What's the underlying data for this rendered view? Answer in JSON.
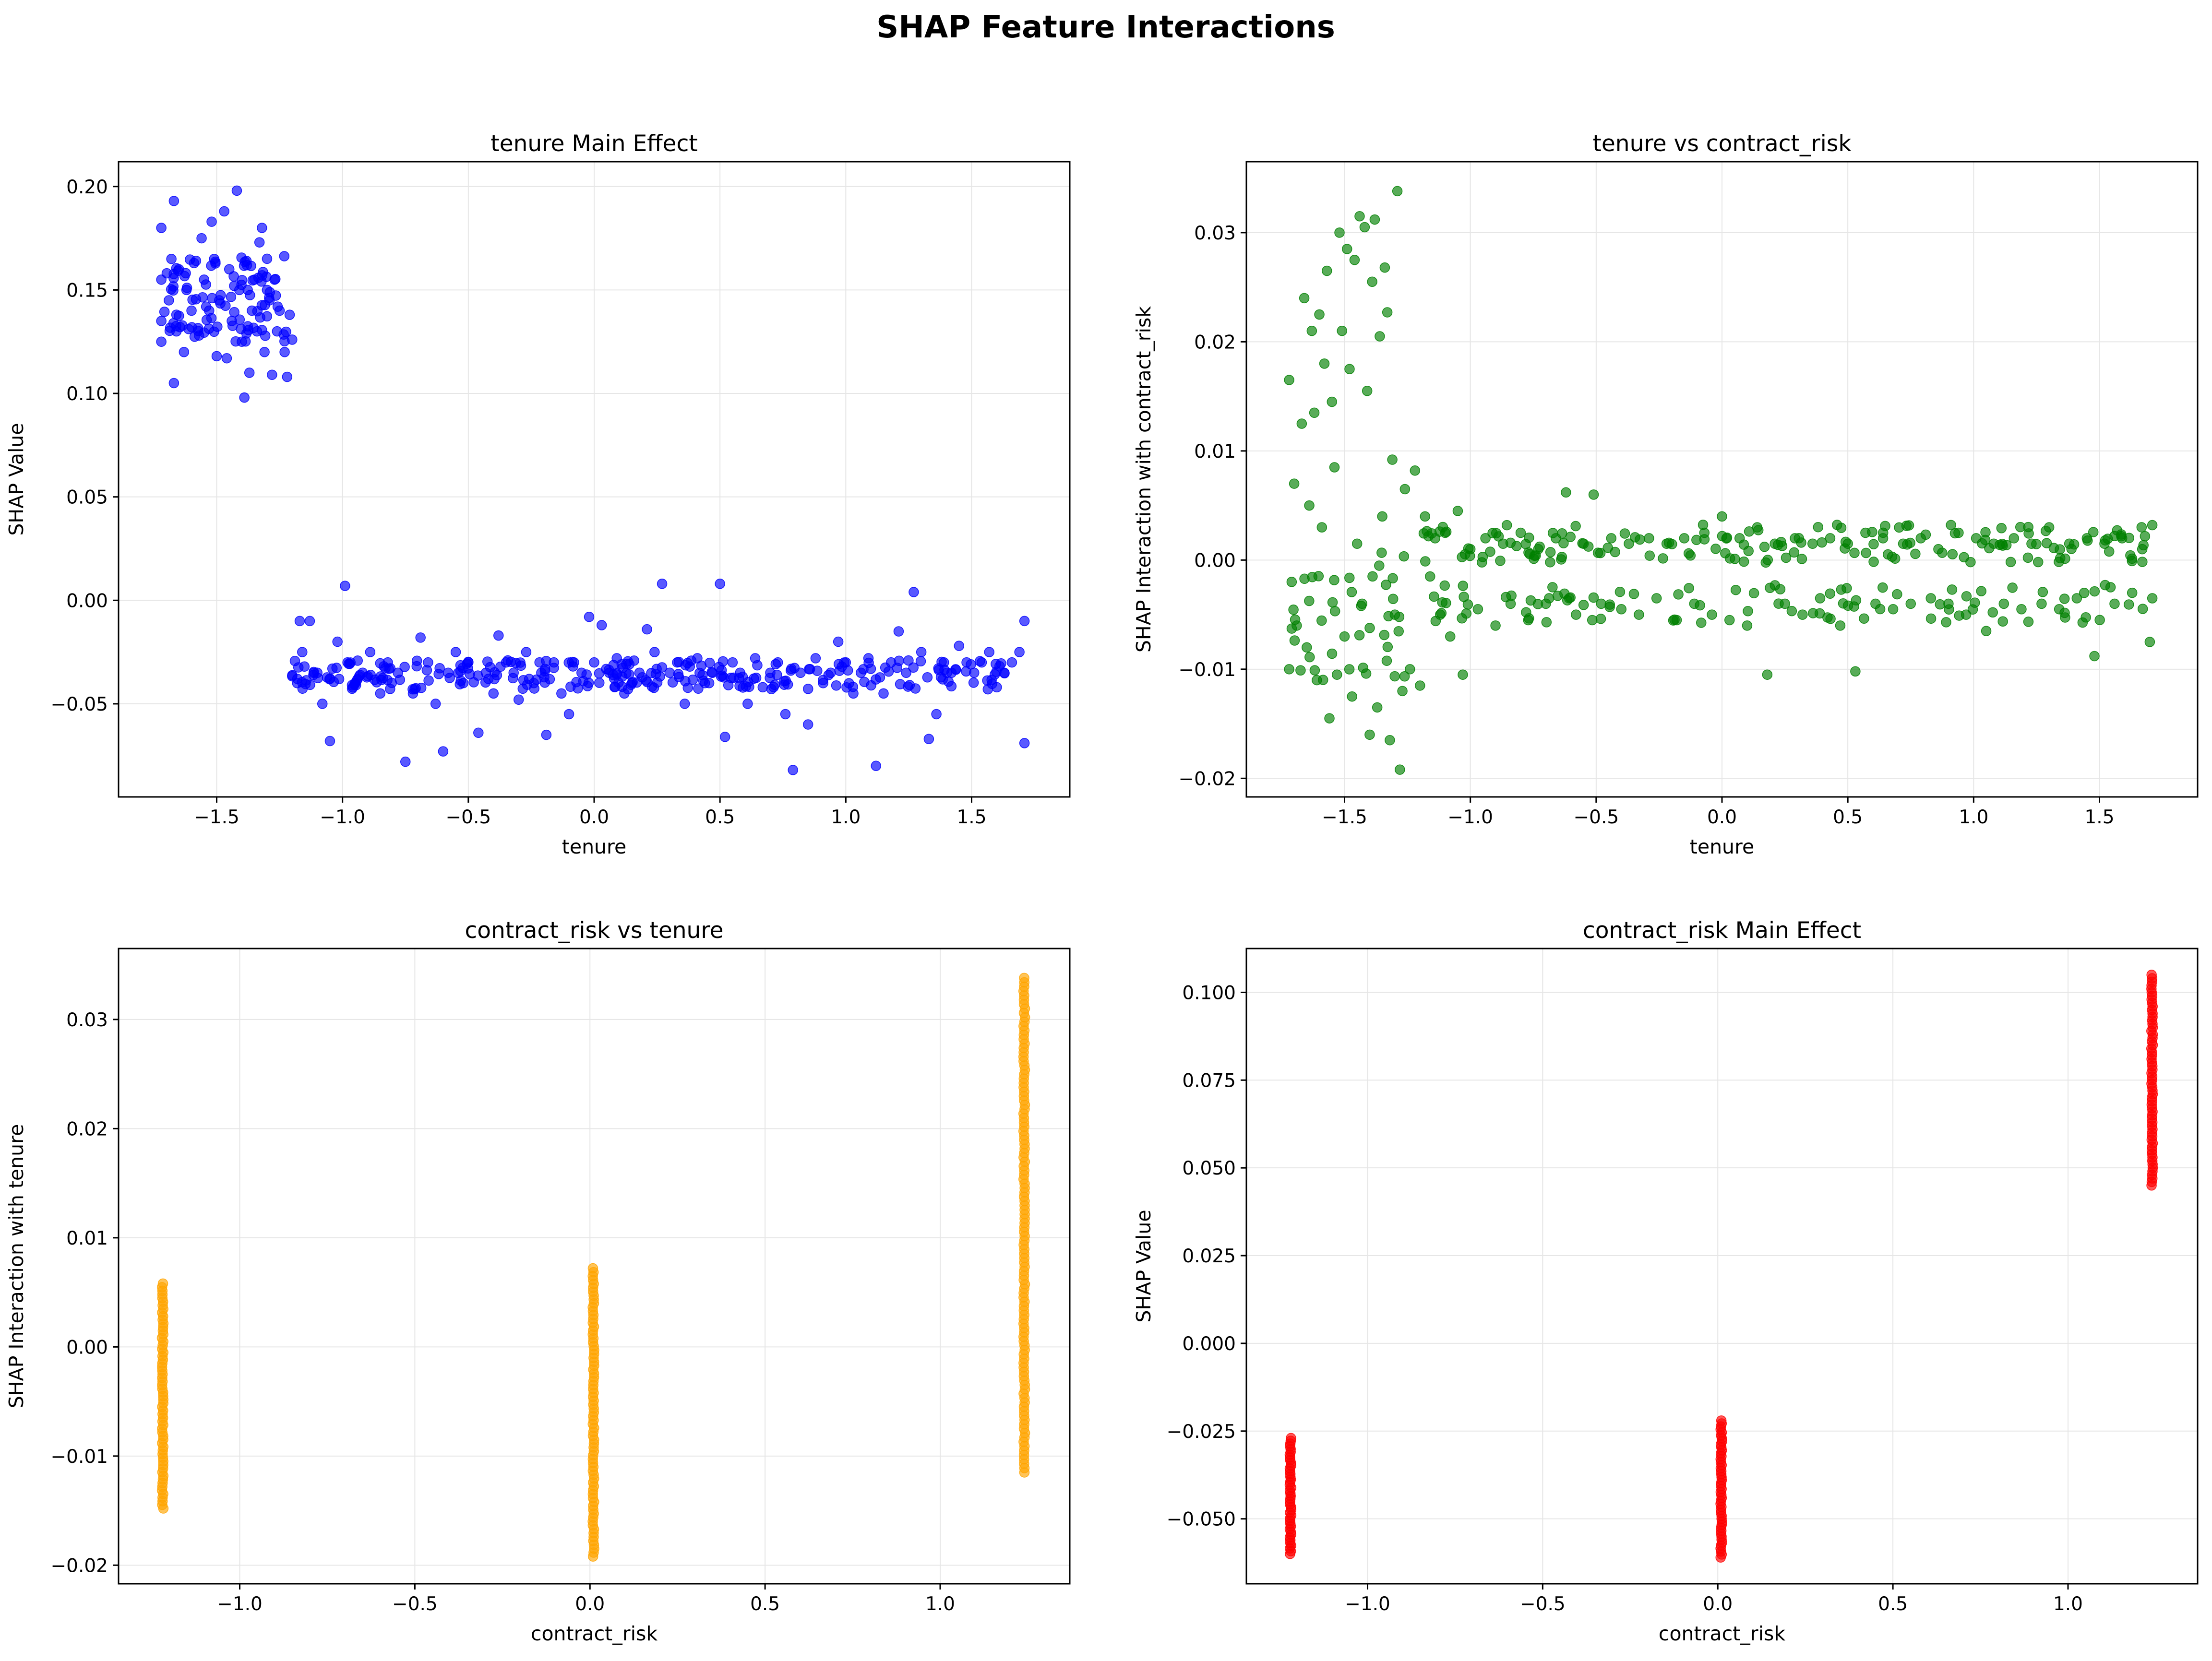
{
  "suptitle": "SHAP Feature Interactions",
  "colors": {
    "blue": "#0000ff",
    "green": "#008000",
    "orange": "#ffa500",
    "red": "#ff0000",
    "grid": "#e6e6e6"
  },
  "chart_data": [
    {
      "type": "scatter",
      "title": "tenure Main Effect",
      "xlabel": "tenure",
      "ylabel": "SHAP Value",
      "color": "#0000ff",
      "xlim": [
        -1.89,
        1.89
      ],
      "ylim": [
        -0.095,
        0.212
      ],
      "xticks": [
        -1.5,
        -1.0,
        -0.5,
        0.0,
        0.5,
        1.0,
        1.5
      ],
      "yticks": [
        -0.05,
        0.0,
        0.05,
        0.1,
        0.15,
        0.2
      ],
      "xtick_labels": [
        "−1.5",
        "−1.0",
        "−0.5",
        "0.0",
        "0.5",
        "1.0",
        "1.5"
      ],
      "ytick_labels": [
        "−0.05",
        "0.00",
        "0.05",
        "0.10",
        "0.15",
        "0.20"
      ],
      "grid": true,
      "points": [
        [
          -1.72,
          0.155
        ],
        [
          -1.72,
          0.135
        ],
        [
          -1.72,
          0.18
        ],
        [
          -1.72,
          0.125
        ],
        [
          -1.69,
          0.145
        ],
        [
          -1.68,
          0.165
        ],
        [
          -1.67,
          0.193
        ],
        [
          -1.67,
          0.105
        ],
        [
          -1.66,
          0.13
        ],
        [
          -1.65,
          0.16
        ],
        [
          -1.63,
          0.12
        ],
        [
          -1.62,
          0.15
        ],
        [
          -1.6,
          0.14
        ],
        [
          -1.59,
          0.163
        ],
        [
          -1.57,
          0.128
        ],
        [
          -1.56,
          0.175
        ],
        [
          -1.55,
          0.155
        ],
        [
          -1.53,
          0.14
        ],
        [
          -1.52,
          0.183
        ],
        [
          -1.51,
          0.165
        ],
        [
          -1.5,
          0.118
        ],
        [
          -1.49,
          0.145
        ],
        [
          -1.47,
          0.188
        ],
        [
          -1.46,
          0.117
        ],
        [
          -1.45,
          0.16
        ],
        [
          -1.44,
          0.135
        ],
        [
          -1.42,
          0.198
        ],
        [
          -1.41,
          0.15
        ],
        [
          -1.4,
          0.125
        ],
        [
          -1.39,
          0.098
        ],
        [
          -1.38,
          0.162
        ],
        [
          -1.37,
          0.11
        ],
        [
          -1.36,
          0.14
        ],
        [
          -1.35,
          0.155
        ],
        [
          -1.34,
          0.13
        ],
        [
          -1.33,
          0.173
        ],
        [
          -1.32,
          0.18
        ],
        [
          -1.31,
          0.12
        ],
        [
          -1.3,
          0.15
        ],
        [
          -1.29,
          0.145
        ],
        [
          -1.28,
          0.109
        ],
        [
          -1.27,
          0.155
        ],
        [
          -1.26,
          0.13
        ],
        [
          -1.25,
          0.14
        ],
        [
          -1.23,
          0.12
        ],
        [
          -1.22,
          0.108
        ],
        [
          -1.21,
          0.138
        ],
        [
          -1.2,
          0.126
        ],
        [
          -1.18,
          -0.04
        ],
        [
          -1.17,
          -0.01
        ],
        [
          -1.16,
          -0.025
        ],
        [
          -1.13,
          -0.01
        ],
        [
          -1.1,
          -0.035
        ],
        [
          -1.08,
          -0.05
        ],
        [
          -1.05,
          -0.068
        ],
        [
          -1.04,
          -0.033
        ],
        [
          -1.02,
          -0.02
        ],
        [
          -0.99,
          0.007
        ],
        [
          -0.98,
          -0.03
        ],
        [
          -0.95,
          -0.04
        ],
        [
          -0.92,
          -0.035
        ],
        [
          -0.89,
          -0.025
        ],
        [
          -0.85,
          -0.045
        ],
        [
          -0.82,
          -0.03
        ],
        [
          -0.78,
          -0.035
        ],
        [
          -0.75,
          -0.078
        ],
        [
          -0.72,
          -0.045
        ],
        [
          -0.69,
          -0.018
        ],
        [
          -0.66,
          -0.03
        ],
        [
          -0.63,
          -0.05
        ],
        [
          -0.6,
          -0.073
        ],
        [
          -0.58,
          -0.035
        ],
        [
          -0.55,
          -0.025
        ],
        [
          -0.52,
          -0.04
        ],
        [
          -0.5,
          -0.03
        ],
        [
          -0.46,
          -0.064
        ],
        [
          -0.43,
          -0.035
        ],
        [
          -0.4,
          -0.045
        ],
        [
          -0.38,
          -0.017
        ],
        [
          -0.35,
          -0.03
        ],
        [
          -0.32,
          -0.035
        ],
        [
          -0.3,
          -0.048
        ],
        [
          -0.27,
          -0.025
        ],
        [
          -0.24,
          -0.04
        ],
        [
          -0.21,
          -0.035
        ],
        [
          -0.19,
          -0.065
        ],
        [
          -0.16,
          -0.03
        ],
        [
          -0.13,
          -0.045
        ],
        [
          -0.1,
          -0.055
        ],
        [
          -0.08,
          -0.03
        ],
        [
          -0.05,
          -0.035
        ],
        [
          -0.02,
          -0.008
        ],
        [
          0.0,
          -0.03
        ],
        [
          0.03,
          -0.012
        ],
        [
          0.06,
          -0.035
        ],
        [
          0.09,
          -0.028
        ],
        [
          0.12,
          -0.045
        ],
        [
          0.15,
          -0.04
        ],
        [
          0.18,
          -0.035
        ],
        [
          0.21,
          -0.014
        ],
        [
          0.24,
          -0.025
        ],
        [
          0.27,
          0.008
        ],
        [
          0.3,
          -0.035
        ],
        [
          0.33,
          -0.03
        ],
        [
          0.36,
          -0.05
        ],
        [
          0.38,
          -0.032
        ],
        [
          0.41,
          -0.028
        ],
        [
          0.44,
          -0.04
        ],
        [
          0.47,
          -0.035
        ],
        [
          0.5,
          0.008
        ],
        [
          0.52,
          -0.066
        ],
        [
          0.55,
          -0.03
        ],
        [
          0.58,
          -0.035
        ],
        [
          0.61,
          -0.05
        ],
        [
          0.64,
          -0.028
        ],
        [
          0.67,
          -0.042
        ],
        [
          0.7,
          -0.035
        ],
        [
          0.73,
          -0.03
        ],
        [
          0.76,
          -0.055
        ],
        [
          0.79,
          -0.082
        ],
        [
          0.82,
          -0.035
        ],
        [
          0.85,
          -0.06
        ],
        [
          0.88,
          -0.028
        ],
        [
          0.91,
          -0.04
        ],
        [
          0.94,
          -0.035
        ],
        [
          0.97,
          -0.02
        ],
        [
          1.0,
          -0.03
        ],
        [
          1.03,
          -0.045
        ],
        [
          1.06,
          -0.035
        ],
        [
          1.09,
          -0.028
        ],
        [
          1.12,
          -0.08
        ],
        [
          1.15,
          -0.045
        ],
        [
          1.18,
          -0.03
        ],
        [
          1.21,
          -0.015
        ],
        [
          1.24,
          -0.035
        ],
        [
          1.27,
          0.004
        ],
        [
          1.3,
          -0.025
        ],
        [
          1.33,
          -0.067
        ],
        [
          1.36,
          -0.055
        ],
        [
          1.39,
          -0.03
        ],
        [
          1.42,
          -0.035
        ],
        [
          1.45,
          -0.022
        ],
        [
          1.48,
          -0.03
        ],
        [
          1.51,
          -0.035
        ],
        [
          1.54,
          -0.03
        ],
        [
          1.57,
          -0.025
        ],
        [
          1.6,
          -0.042
        ],
        [
          1.63,
          -0.035
        ],
        [
          1.66,
          -0.03
        ],
        [
          1.69,
          -0.025
        ],
        [
          1.71,
          -0.01
        ],
        [
          1.71,
          -0.069
        ]
      ]
    },
    {
      "type": "scatter",
      "title": "tenure vs contract_risk",
      "xlabel": "tenure",
      "ylabel": "SHAP Interaction with contract_risk",
      "color": "#008000",
      "xlim": [
        -1.89,
        1.89
      ],
      "ylim": [
        -0.0217,
        0.0365
      ],
      "xticks": [
        -1.5,
        -1.0,
        -0.5,
        0.0,
        0.5,
        1.0,
        1.5
      ],
      "yticks": [
        -0.02,
        -0.01,
        0.0,
        0.01,
        0.02,
        0.03
      ],
      "xtick_labels": [
        "−1.5",
        "−1.0",
        "−0.5",
        "0.0",
        "0.5",
        "1.0",
        "1.5"
      ],
      "ytick_labels": [
        "−0.02",
        "−0.01",
        "0.00",
        "0.01",
        "0.02",
        "0.03"
      ],
      "grid": true,
      "points": [
        [
          -1.72,
          0.0165
        ],
        [
          -1.72,
          -0.01
        ],
        [
          -1.71,
          -0.002
        ],
        [
          -1.7,
          0.007
        ],
        [
          -1.69,
          -0.006
        ],
        [
          -1.67,
          0.0125
        ],
        [
          -1.66,
          0.024
        ],
        [
          -1.65,
          -0.008
        ],
        [
          -1.64,
          0.005
        ],
        [
          -1.63,
          0.021
        ],
        [
          -1.62,
          0.0135
        ],
        [
          -1.61,
          -0.011
        ],
        [
          -1.6,
          0.0225
        ],
        [
          -1.59,
          0.003
        ],
        [
          -1.58,
          0.018
        ],
        [
          -1.57,
          0.0265
        ],
        [
          -1.56,
          -0.0145
        ],
        [
          -1.55,
          0.0145
        ],
        [
          -1.54,
          0.0085
        ],
        [
          -1.53,
          -0.0105
        ],
        [
          -1.52,
          0.03
        ],
        [
          -1.51,
          0.021
        ],
        [
          -1.5,
          -0.007
        ],
        [
          -1.49,
          0.0285
        ],
        [
          -1.48,
          0.0175
        ],
        [
          -1.47,
          -0.0125
        ],
        [
          -1.46,
          0.0275
        ],
        [
          -1.45,
          0.0015
        ],
        [
          -1.44,
          0.0315
        ],
        [
          -1.43,
          -0.004
        ],
        [
          -1.42,
          0.0305
        ],
        [
          -1.41,
          0.0155
        ],
        [
          -1.4,
          -0.016
        ],
        [
          -1.39,
          0.0255
        ],
        [
          -1.38,
          0.0312
        ],
        [
          -1.37,
          -0.0135
        ],
        [
          -1.36,
          0.0205
        ],
        [
          -1.35,
          0.004
        ],
        [
          -1.34,
          0.0268
        ],
        [
          -1.33,
          0.0227
        ],
        [
          -1.32,
          -0.0165
        ],
        [
          -1.31,
          0.0092
        ],
        [
          -1.3,
          -0.005
        ],
        [
          -1.29,
          0.0338
        ],
        [
          -1.28,
          -0.0192
        ],
        [
          -1.27,
          -0.012
        ],
        [
          -1.26,
          0.0065
        ],
        [
          -1.24,
          -0.01
        ],
        [
          -1.22,
          0.0082
        ],
        [
          -1.2,
          -0.0115
        ],
        [
          -1.18,
          0.004
        ],
        [
          -1.16,
          -0.0015
        ],
        [
          -1.14,
          0.002
        ],
        [
          -1.12,
          -0.005
        ],
        [
          -1.1,
          0.0025
        ],
        [
          -1.08,
          -0.007
        ],
        [
          -1.05,
          0.0045
        ],
        [
          -1.03,
          -0.0105
        ],
        [
          -1.0,
          0.001
        ],
        [
          -0.97,
          -0.0045
        ],
        [
          -0.94,
          0.002
        ],
        [
          -0.9,
          -0.006
        ],
        [
          -0.87,
          0.0015
        ],
        [
          -0.84,
          -0.004
        ],
        [
          -0.8,
          0.0025
        ],
        [
          -0.77,
          -0.0055
        ],
        [
          -0.73,
          0.001
        ],
        [
          -0.7,
          -0.004
        ],
        [
          -0.66,
          0.002
        ],
        [
          -0.62,
          0.0062
        ],
        [
          -0.58,
          -0.005
        ],
        [
          -0.55,
          0.0015
        ],
        [
          -0.51,
          0.006
        ],
        [
          -0.48,
          -0.004
        ],
        [
          -0.44,
          0.002
        ],
        [
          -0.4,
          -0.0045
        ],
        [
          -0.37,
          0.0015
        ],
        [
          -0.33,
          -0.005
        ],
        [
          -0.29,
          0.002
        ],
        [
          -0.26,
          -0.0035
        ],
        [
          -0.22,
          0.0015
        ],
        [
          -0.18,
          -0.0055
        ],
        [
          -0.15,
          0.002
        ],
        [
          -0.11,
          -0.004
        ],
        [
          -0.07,
          0.0025
        ],
        [
          -0.04,
          -0.005
        ],
        [
          0.0,
          0.004
        ],
        [
          0.03,
          -0.0055
        ],
        [
          0.07,
          0.002
        ],
        [
          0.1,
          -0.006
        ],
        [
          0.14,
          0.003
        ],
        [
          0.18,
          -0.0105
        ],
        [
          0.21,
          0.0015
        ],
        [
          0.25,
          -0.004
        ],
        [
          0.29,
          0.002
        ],
        [
          0.32,
          -0.005
        ],
        [
          0.36,
          0.0015
        ],
        [
          0.39,
          -0.0035
        ],
        [
          0.43,
          0.002
        ],
        [
          0.47,
          -0.006
        ],
        [
          0.5,
          0.0015
        ],
        [
          0.53,
          -0.0102
        ],
        [
          0.57,
          0.0025
        ],
        [
          0.61,
          -0.004
        ],
        [
          0.64,
          0.002
        ],
        [
          0.68,
          -0.0045
        ],
        [
          0.72,
          0.0015
        ],
        [
          0.75,
          -0.004
        ],
        [
          0.79,
          0.002
        ],
        [
          0.83,
          -0.0035
        ],
        [
          0.86,
          0.001
        ],
        [
          0.9,
          -0.004
        ],
        [
          0.94,
          0.0025
        ],
        [
          0.97,
          -0.005
        ],
        [
          1.01,
          0.002
        ],
        [
          1.05,
          -0.0065
        ],
        [
          1.08,
          0.0015
        ],
        [
          1.12,
          -0.004
        ],
        [
          1.16,
          0.002
        ],
        [
          1.19,
          -0.0045
        ],
        [
          1.23,
          0.0015
        ],
        [
          1.27,
          -0.004
        ],
        [
          1.3,
          0.003
        ],
        [
          1.34,
          -0.0045
        ],
        [
          1.38,
          0.0015
        ],
        [
          1.41,
          -0.0035
        ],
        [
          1.45,
          0.002
        ],
        [
          1.48,
          -0.0088
        ],
        [
          1.52,
          0.0015
        ],
        [
          1.56,
          -0.004
        ],
        [
          1.59,
          0.002
        ],
        [
          1.63,
          -0.003
        ],
        [
          1.67,
          0.001
        ],
        [
          1.7,
          -0.0075
        ],
        [
          1.71,
          0.0032
        ],
        [
          1.71,
          -0.0035
        ]
      ]
    },
    {
      "type": "scatter",
      "title": "contract_risk vs tenure",
      "xlabel": "contract_risk",
      "ylabel": "SHAP Interaction with tenure",
      "color": "#ffa500",
      "xlim": [
        -1.346,
        1.37
      ],
      "ylim": [
        -0.0217,
        0.0365
      ],
      "xticks": [
        -1.0,
        -0.5,
        0.0,
        0.5,
        1.0
      ],
      "yticks": [
        -0.02,
        -0.01,
        0.0,
        0.01,
        0.02,
        0.03
      ],
      "xtick_labels": [
        "−1.0",
        "−0.5",
        "0.0",
        "0.5",
        "1.0"
      ],
      "ytick_labels": [
        "−0.02",
        "−0.01",
        "0.00",
        "0.01",
        "0.02",
        "0.03"
      ],
      "grid": true,
      "columns": [
        {
          "x": -1.22,
          "ymin": -0.0148,
          "ymax": 0.0058
        },
        {
          "x": 0.01,
          "ymin": -0.0192,
          "ymax": 0.0072
        },
        {
          "x": 1.24,
          "ymin": -0.0115,
          "ymax": 0.0338
        }
      ]
    },
    {
      "type": "scatter",
      "title": "contract_risk Main Effect",
      "xlabel": "contract_risk",
      "ylabel": "SHAP Value",
      "color": "#ff0000",
      "xlim": [
        -1.346,
        1.37
      ],
      "ylim": [
        -0.0685,
        0.1125
      ],
      "xticks": [
        -1.0,
        -0.5,
        0.0,
        0.5,
        1.0
      ],
      "yticks": [
        -0.05,
        -0.025,
        0.0,
        0.025,
        0.05,
        0.075,
        0.1
      ],
      "xtick_labels": [
        "−1.0",
        "−0.5",
        "0.0",
        "0.5",
        "1.0"
      ],
      "ytick_labels": [
        "−0.050",
        "−0.025",
        "0.000",
        "0.025",
        "0.050",
        "0.075",
        "0.100"
      ],
      "grid": true,
      "columns": [
        {
          "x": -1.22,
          "ymin": -0.06,
          "ymax": -0.027
        },
        {
          "x": 0.01,
          "ymin": -0.061,
          "ymax": -0.022
        },
        {
          "x": 1.24,
          "ymin": 0.045,
          "ymax": 0.105
        }
      ]
    }
  ]
}
